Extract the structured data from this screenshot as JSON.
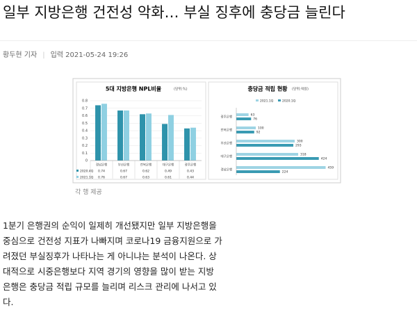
{
  "header": {
    "title": "일부 지방은행 건전성 악화… 부실 징후에 충당금 늘린다",
    "reporter": "황두현 기자",
    "published_label": "입력",
    "published": "2021-05-24 19:26"
  },
  "chart_data": [
    {
      "type": "bar",
      "title": "5대 지방은행 NPL비율",
      "unit": "(단위:%)",
      "categories": [
        "경남은행",
        "부산은행",
        "전북은행",
        "대구은행",
        "광주은행"
      ],
      "series": [
        {
          "name": "2020.4Q",
          "color": "#2e93ab",
          "values": [
            0.74,
            0.67,
            0.62,
            0.49,
            0.43
          ]
        },
        {
          "name": "2021.1Q",
          "color": "#8fd0e2",
          "values": [
            0.76,
            0.67,
            0.63,
            0.61,
            0.44
          ]
        }
      ],
      "ylim": [
        0,
        0.8
      ],
      "yticks": [
        0,
        0.1,
        0.2,
        0.3,
        0.4,
        0.5,
        0.6,
        0.7,
        0.8
      ],
      "grid": true
    },
    {
      "type": "barh",
      "title": "충당금 적립 현황",
      "unit": "(단위:억원)",
      "categories": [
        "광주은행",
        "전북은행",
        "부산은행",
        "대구은행",
        "경남은행"
      ],
      "series": [
        {
          "name": "2021.1Q",
          "color": "#9ed4e4",
          "values": [
            63,
            100,
            300,
            318,
            459
          ]
        },
        {
          "name": "2020.1Q",
          "color": "#3a9bb3",
          "values": [
            76,
            92,
            293,
            424,
            224
          ]
        }
      ],
      "xlim": [
        0,
        500
      ]
    }
  ],
  "caption": "각 행 제공",
  "body": {
    "lines": [
      "1분기 은행권의 순익이 일제히 개선됐지만 일부 지방은행을",
      "중심으로 건전성 지표가 나빠지며 코로나19 금융지원으로 가",
      "려졌던 부실징후가 나타나는 게 아니냐는 분석이 나온다. 상",
      "대적으로 시중은행보다 지역 경기의 영향을 많이 받는 지방",
      "은행은 충당금 적립 규모를 늘리며 리스크 관리에 나서고 있",
      "다."
    ]
  }
}
